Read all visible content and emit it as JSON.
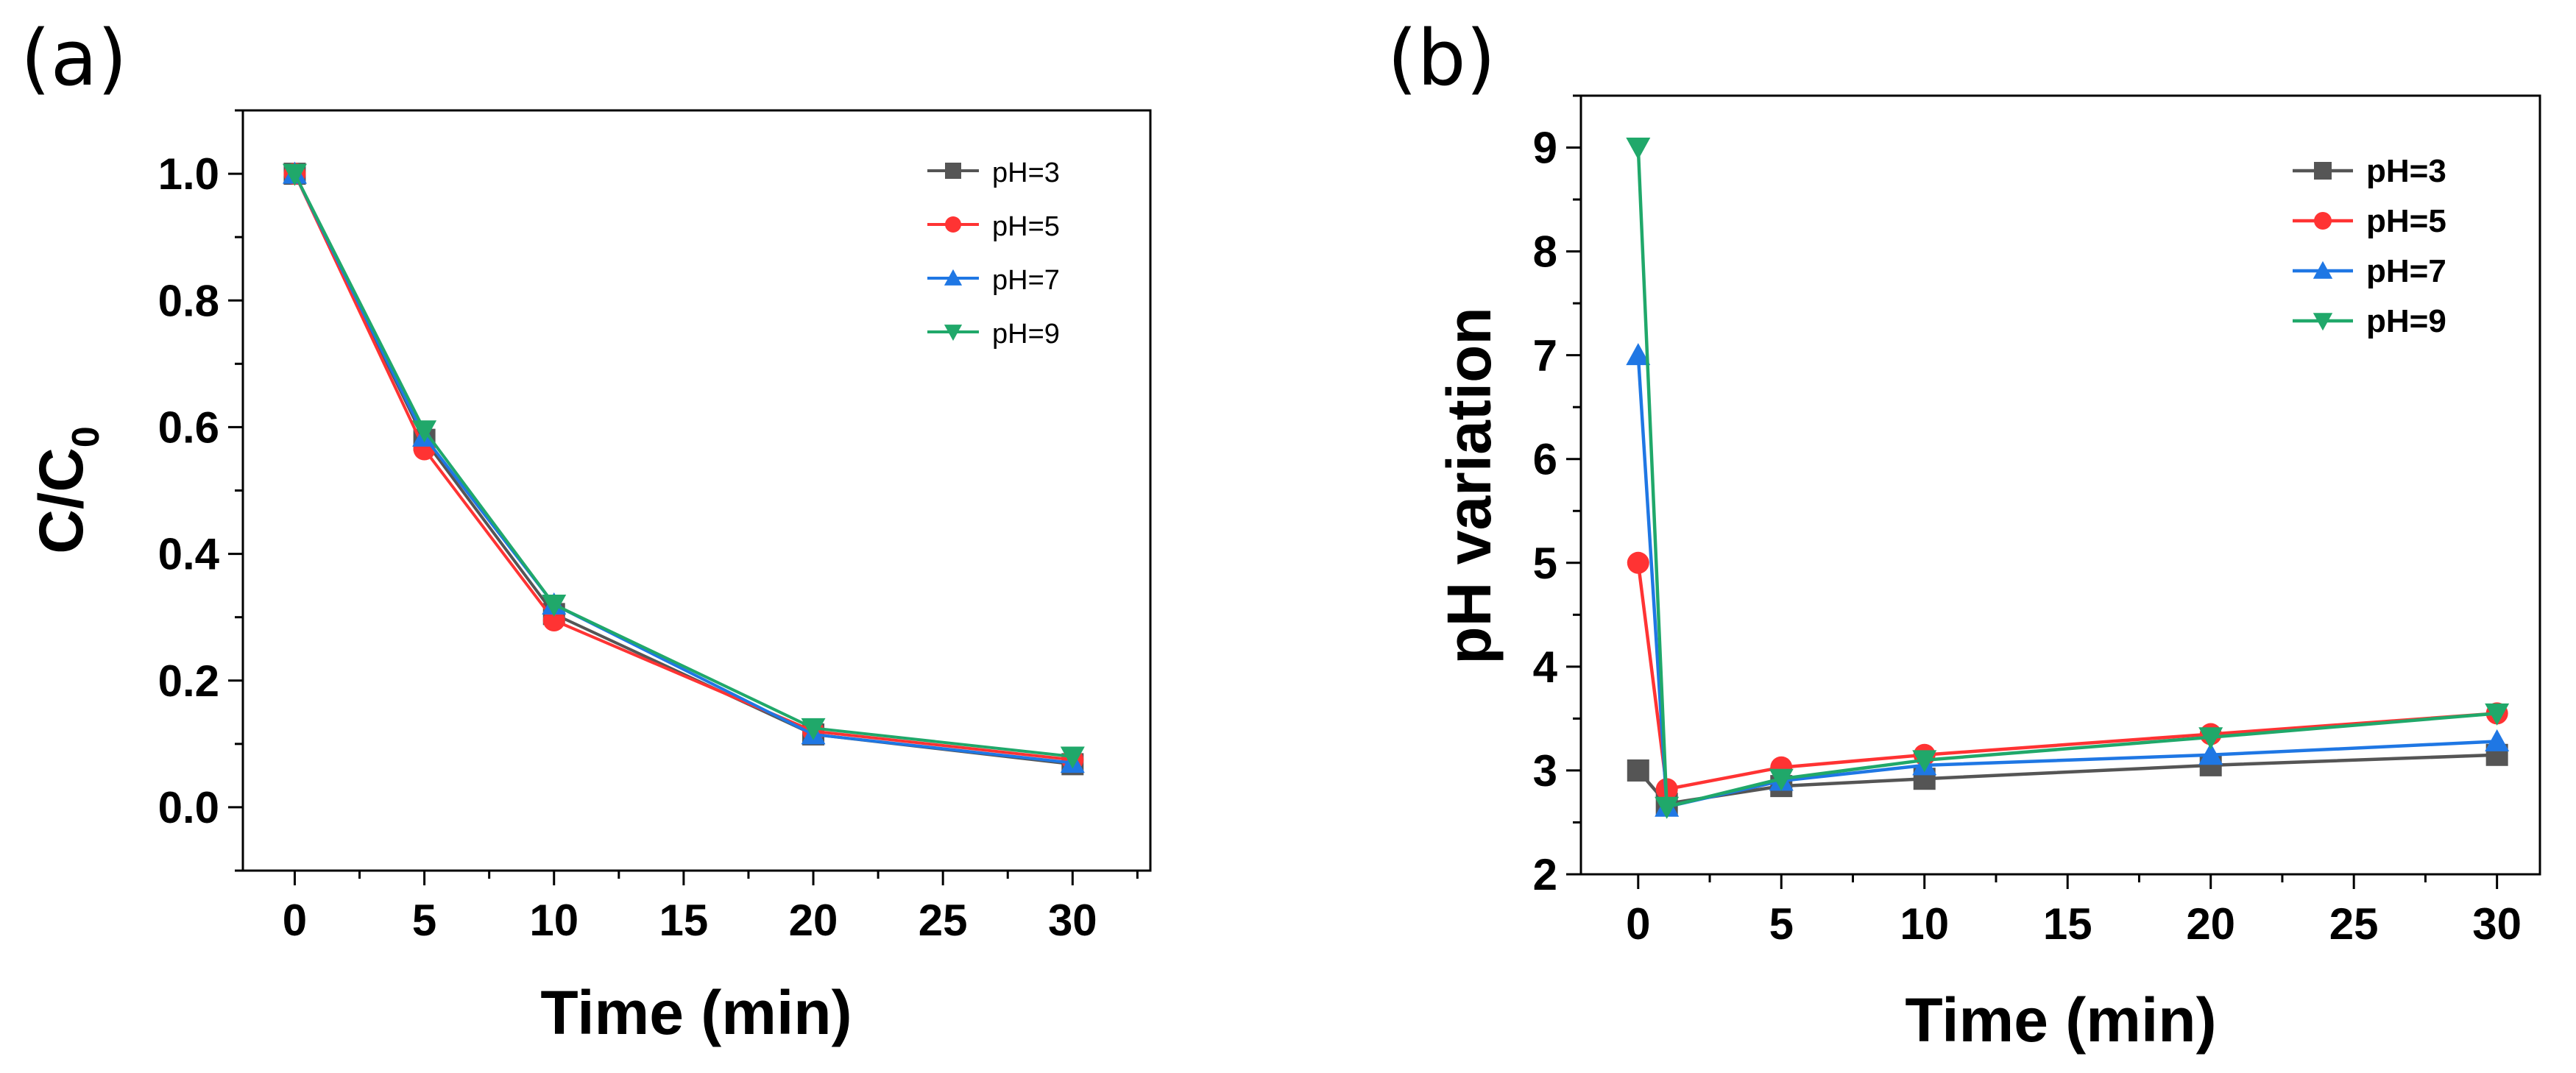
{
  "figure": {
    "panel_a_label": "(a)",
    "panel_b_label": "(b)"
  },
  "colors": {
    "pH=3": "#555555",
    "pH=5": "#ff3333",
    "pH=7": "#1f77e4",
    "pH=9": "#20a86a"
  },
  "chart_data": [
    {
      "type": "line",
      "panel": "a",
      "xlabel": "Time (min)",
      "ylabel": "C/C",
      "ylabel_subscript": "0",
      "xlim": [
        -2,
        33
      ],
      "ylim": [
        -0.1,
        1.1
      ],
      "xticks": [
        0,
        5,
        10,
        15,
        20,
        25,
        30
      ],
      "xtick_labels": [
        "0",
        "5",
        "10",
        "15",
        "20",
        "25",
        "30"
      ],
      "yticks": [
        0.0,
        0.2,
        0.4,
        0.6,
        0.8,
        1.0
      ],
      "ytick_labels": [
        "0.0",
        "0.2",
        "0.4",
        "0.6",
        "0.8",
        "1.0"
      ],
      "legend_position": "top-right",
      "series": [
        {
          "name": "pH=3",
          "marker": "square",
          "x": [
            0,
            5,
            10,
            20,
            30
          ],
          "y": [
            1.0,
            0.58,
            0.305,
            0.115,
            0.068
          ]
        },
        {
          "name": "pH=5",
          "marker": "circle",
          "x": [
            0,
            5,
            10,
            20,
            30
          ],
          "y": [
            1.0,
            0.565,
            0.295,
            0.12,
            0.075
          ]
        },
        {
          "name": "pH=7",
          "marker": "triangle-up",
          "x": [
            0,
            5,
            10,
            20,
            30
          ],
          "y": [
            1.0,
            0.585,
            0.32,
            0.115,
            0.07
          ]
        },
        {
          "name": "pH=9",
          "marker": "triangle-down",
          "x": [
            0,
            5,
            10,
            20,
            30
          ],
          "y": [
            1.0,
            0.595,
            0.32,
            0.125,
            0.08
          ]
        }
      ]
    },
    {
      "type": "line",
      "panel": "b",
      "xlabel": "Time (min)",
      "ylabel": "pH variation",
      "xlim": [
        -2,
        31.5
      ],
      "ylim": [
        2,
        9.5
      ],
      "xticks": [
        0,
        5,
        10,
        15,
        20,
        25,
        30
      ],
      "xtick_labels": [
        "0",
        "5",
        "10",
        "15",
        "20",
        "25",
        "30"
      ],
      "yticks": [
        2,
        3,
        4,
        5,
        6,
        7,
        8,
        9
      ],
      "ytick_labels": [
        "2",
        "3",
        "4",
        "5",
        "6",
        "7",
        "8",
        "9"
      ],
      "legend_position": "top-right",
      "series": [
        {
          "name": "pH=3",
          "marker": "square",
          "x": [
            0,
            1,
            5,
            10,
            20,
            30
          ],
          "y": [
            3.0,
            2.68,
            2.85,
            2.92,
            3.05,
            3.15
          ]
        },
        {
          "name": "pH=5",
          "marker": "circle",
          "x": [
            0,
            1,
            5,
            10,
            20,
            30
          ],
          "y": [
            5.0,
            2.82,
            3.03,
            3.15,
            3.35,
            3.55
          ]
        },
        {
          "name": "pH=7",
          "marker": "triangle-up",
          "x": [
            0,
            1,
            5,
            10,
            20,
            30
          ],
          "y": [
            7.0,
            2.65,
            2.9,
            3.05,
            3.15,
            3.28
          ]
        },
        {
          "name": "pH=9",
          "marker": "triangle-down",
          "x": [
            0,
            1,
            5,
            10,
            20,
            30
          ],
          "y": [
            9.0,
            2.65,
            2.92,
            3.1,
            3.32,
            3.55
          ]
        }
      ]
    }
  ]
}
